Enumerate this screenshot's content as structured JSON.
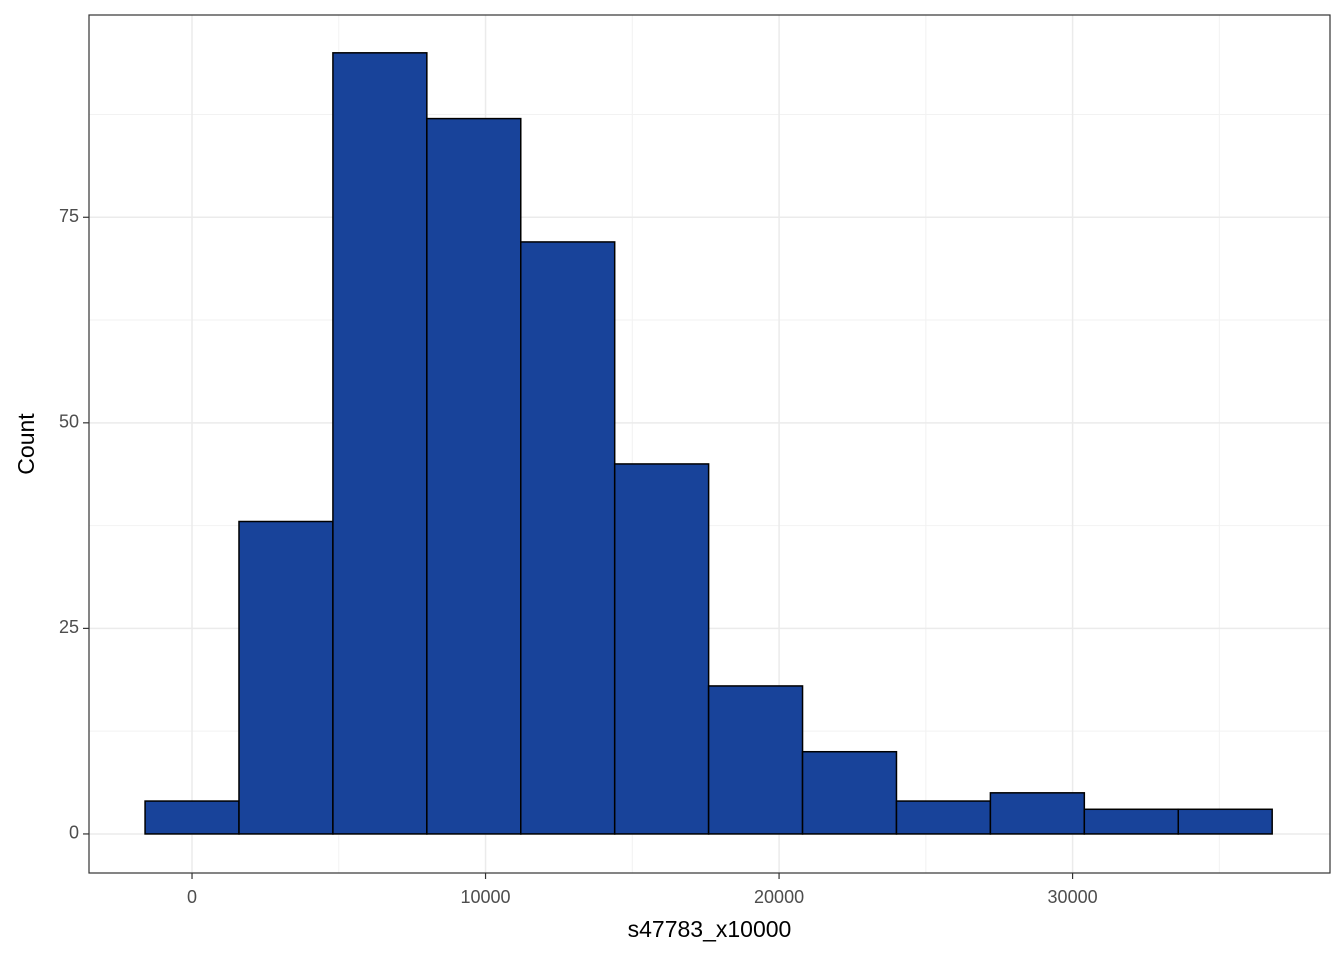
{
  "chart_data": {
    "type": "histogram",
    "x_label": "s47783_x10000",
    "y_label": "Count",
    "bins": [
      -1600,
      1600,
      4800,
      8000,
      11200,
      14400,
      17600,
      20800,
      24000,
      27200,
      30400,
      33600,
      36800
    ],
    "values": [
      4,
      38,
      95,
      87,
      72,
      45,
      18,
      10,
      4,
      5,
      3,
      3
    ],
    "color": "#18439a",
    "edgecolor": "#000000",
    "xlim": [
      -3510,
      38770
    ],
    "ylim": [
      -4.75,
      99.6
    ],
    "xticks": [
      0,
      10000,
      20000,
      30000
    ],
    "yticks": [
      0,
      25,
      50,
      75
    ],
    "grid": true
  }
}
